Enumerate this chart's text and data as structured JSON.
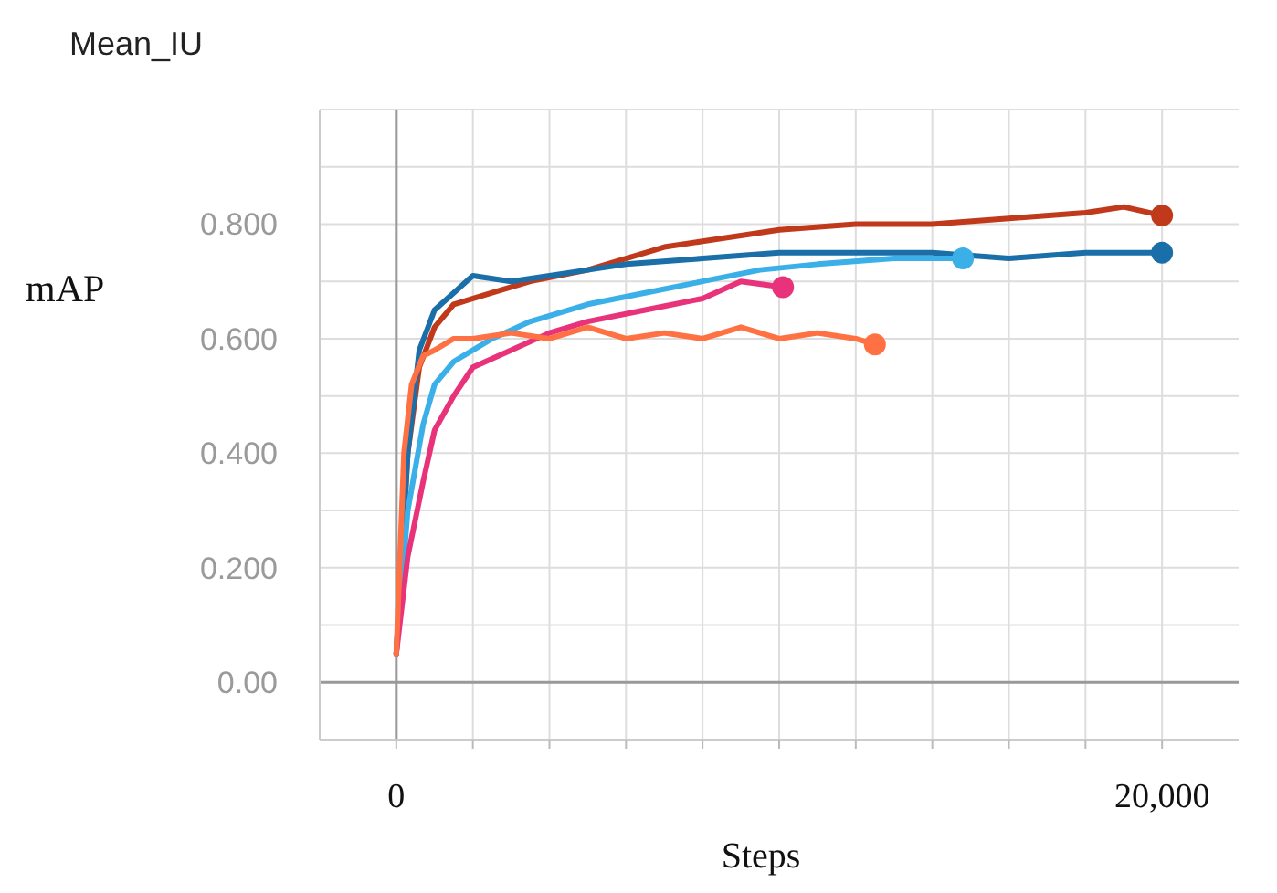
{
  "chart_data": {
    "type": "line",
    "title": "Mean_IU",
    "xlabel": "Steps",
    "ylabel": "mAP",
    "xlim": [
      -2000,
      22000
    ],
    "ylim": [
      -0.1,
      1.0
    ],
    "xticks": [
      0,
      {
        "value": 2000,
        "label": null
      },
      {
        "value": 4000,
        "label": null
      },
      {
        "value": 6000,
        "label": null
      },
      {
        "value": 8000,
        "label": null
      },
      {
        "value": 10000,
        "label": null
      },
      {
        "value": 12000,
        "label": null
      },
      {
        "value": 14000,
        "label": null
      },
      {
        "value": 16000,
        "label": null
      },
      {
        "value": 18000,
        "label": null
      },
      {
        "value": 20000,
        "label": "20,000"
      }
    ],
    "yticks": [
      {
        "value": -0.1,
        "label": null
      },
      {
        "value": 0,
        "label": "0.00"
      },
      {
        "value": 0.1,
        "label": null
      },
      {
        "value": 0.2,
        "label": "0.200"
      },
      {
        "value": 0.3,
        "label": null
      },
      {
        "value": 0.4,
        "label": "0.400"
      },
      {
        "value": 0.5,
        "label": null
      },
      {
        "value": 0.6,
        "label": "0.600"
      },
      {
        "value": 0.7,
        "label": null
      },
      {
        "value": 0.8,
        "label": "0.800"
      },
      {
        "value": 0.9,
        "label": null
      },
      {
        "value": 1.0,
        "label": null
      }
    ],
    "grid": true,
    "series": [
      {
        "color": "#c0391b",
        "x": [
          0,
          300,
          600,
          1000,
          1500,
          2500,
          3500,
          5000,
          6000,
          7000,
          8000,
          9000,
          10000,
          12000,
          14000,
          16000,
          18000,
          19000,
          20000
        ],
        "values": [
          0.05,
          0.4,
          0.55,
          0.62,
          0.66,
          0.68,
          0.7,
          0.72,
          0.74,
          0.76,
          0.77,
          0.78,
          0.79,
          0.8,
          0.8,
          0.81,
          0.82,
          0.83,
          0.815
        ]
      },
      {
        "color": "#1a6fa8",
        "x": [
          0,
          300,
          600,
          1000,
          1500,
          2000,
          3000,
          4000,
          5000,
          6000,
          8000,
          10000,
          12000,
          14000,
          16000,
          18000,
          20000
        ],
        "values": [
          0.05,
          0.4,
          0.58,
          0.65,
          0.68,
          0.71,
          0.7,
          0.71,
          0.72,
          0.73,
          0.74,
          0.75,
          0.75,
          0.75,
          0.74,
          0.75,
          0.75
        ]
      },
      {
        "color": "#3bb0e8",
        "x": [
          0,
          300,
          700,
          1000,
          1500,
          2500,
          3500,
          5000,
          6500,
          8000,
          9500,
          11000,
          13000,
          14800
        ],
        "values": [
          0.05,
          0.3,
          0.45,
          0.52,
          0.56,
          0.6,
          0.63,
          0.66,
          0.68,
          0.7,
          0.72,
          0.73,
          0.74,
          0.74
        ]
      },
      {
        "color": "#e8327a",
        "x": [
          0,
          300,
          700,
          1000,
          1500,
          2000,
          3000,
          4000,
          5000,
          6500,
          8000,
          9000,
          10100
        ],
        "values": [
          0.05,
          0.22,
          0.35,
          0.44,
          0.5,
          0.55,
          0.58,
          0.61,
          0.63,
          0.65,
          0.67,
          0.7,
          0.69
        ]
      },
      {
        "color": "#ff7043",
        "x": [
          0,
          200,
          400,
          700,
          1000,
          1500,
          2000,
          3000,
          4000,
          5000,
          6000,
          7000,
          8000,
          9000,
          10000,
          11000,
          12000,
          12500
        ],
        "values": [
          0.05,
          0.4,
          0.52,
          0.57,
          0.58,
          0.6,
          0.6,
          0.61,
          0.6,
          0.62,
          0.6,
          0.61,
          0.6,
          0.62,
          0.6,
          0.61,
          0.6,
          0.59
        ]
      }
    ]
  }
}
